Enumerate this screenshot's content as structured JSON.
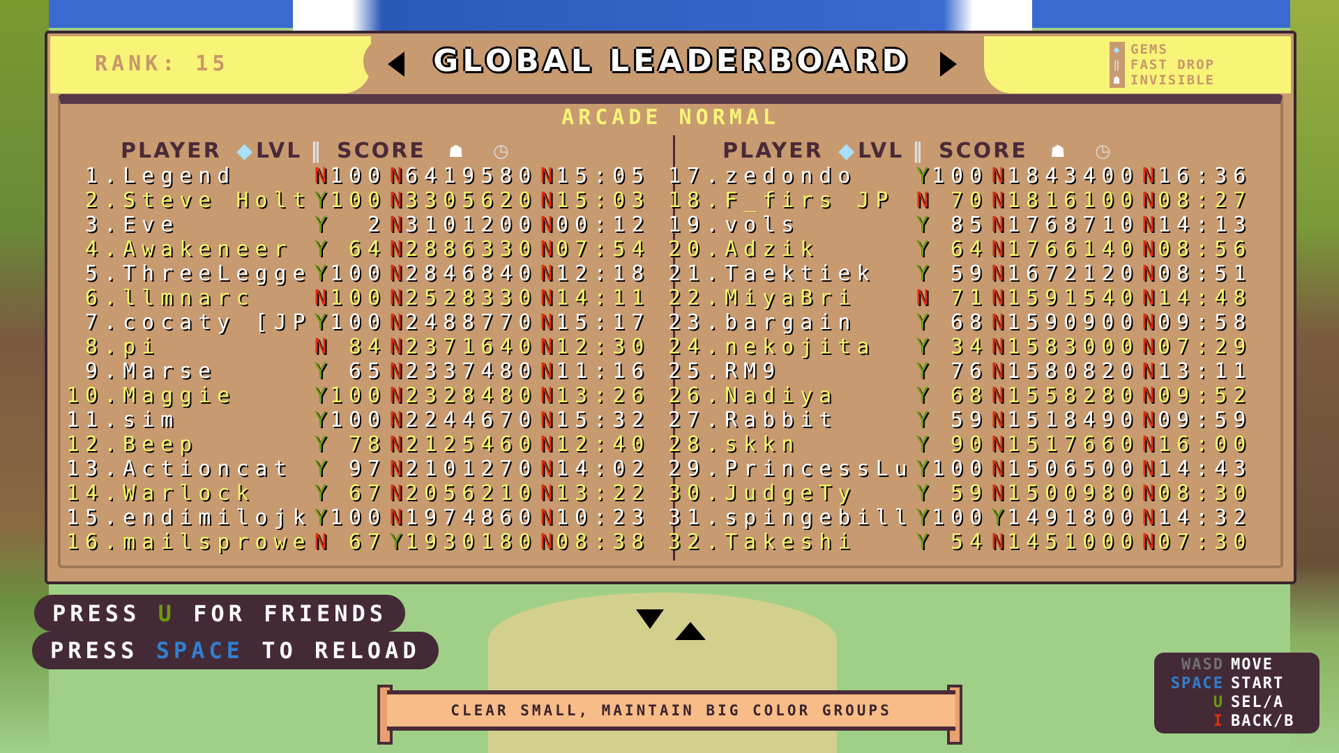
{
  "header": {
    "rank_label": "RANK: 15",
    "title": "GLOBAL LEADERBOARD",
    "mode": "ARCADE NORMAL"
  },
  "legend": [
    {
      "icon": "gem-icon",
      "label": "GEMS"
    },
    {
      "icon": "fast-drop-icon",
      "label": "FAST DROP"
    },
    {
      "icon": "ghost-icon",
      "label": "INVISIBLE"
    }
  ],
  "columns": {
    "player": "PLAYER",
    "lvl": "LVL",
    "score": "SCORE"
  },
  "colors": {
    "white_row": "#ffffff",
    "yellow_row": "#f4f46a",
    "flag_yes": "#6a9a10",
    "flag_no": "#d83010",
    "panel": "#c89a70",
    "accent_blue": "#3080d0"
  },
  "rows": [
    {
      "rank": "1.",
      "name": "Legend",
      "gems": "N",
      "lvl": "100",
      "fast_drop": "N",
      "score": "6419580",
      "invisible": "N",
      "time": "15:05"
    },
    {
      "rank": "2.",
      "name": "Steve Holt",
      "gems": "Y",
      "lvl": "100",
      "fast_drop": "N",
      "score": "3305620",
      "invisible": "N",
      "time": "15:03"
    },
    {
      "rank": "3.",
      "name": "Eve",
      "gems": "Y",
      "lvl": "2",
      "fast_drop": "N",
      "score": "3101200",
      "invisible": "N",
      "time": "00:12"
    },
    {
      "rank": "4.",
      "name": "Awakeneer",
      "gems": "Y",
      "lvl": "64",
      "fast_drop": "N",
      "score": "2886330",
      "invisible": "N",
      "time": "07:54"
    },
    {
      "rank": "5.",
      "name": "ThreeLegge",
      "gems": "Y",
      "lvl": "100",
      "fast_drop": "N",
      "score": "2846840",
      "invisible": "N",
      "time": "12:18"
    },
    {
      "rank": "6.",
      "name": "llmnarc",
      "gems": "N",
      "lvl": "100",
      "fast_drop": "N",
      "score": "2528330",
      "invisible": "N",
      "time": "14:11"
    },
    {
      "rank": "7.",
      "name": "cocaty [JP",
      "gems": "Y",
      "lvl": "100",
      "fast_drop": "N",
      "score": "2488770",
      "invisible": "N",
      "time": "15:17"
    },
    {
      "rank": "8.",
      "name": "pi",
      "gems": "N",
      "lvl": "84",
      "fast_drop": "N",
      "score": "2371640",
      "invisible": "N",
      "time": "12:30"
    },
    {
      "rank": "9.",
      "name": "Marse",
      "gems": "Y",
      "lvl": "65",
      "fast_drop": "N",
      "score": "2337480",
      "invisible": "N",
      "time": "11:16"
    },
    {
      "rank": "10.",
      "name": "Maggie",
      "gems": "Y",
      "lvl": "100",
      "fast_drop": "N",
      "score": "2328480",
      "invisible": "N",
      "time": "13:26"
    },
    {
      "rank": "11.",
      "name": "sim",
      "gems": "Y",
      "lvl": "100",
      "fast_drop": "N",
      "score": "2244670",
      "invisible": "N",
      "time": "15:32"
    },
    {
      "rank": "12.",
      "name": "Beep",
      "gems": "Y",
      "lvl": "78",
      "fast_drop": "N",
      "score": "2125460",
      "invisible": "N",
      "time": "12:40"
    },
    {
      "rank": "13.",
      "name": "Actioncat",
      "gems": "Y",
      "lvl": "97",
      "fast_drop": "N",
      "score": "2101270",
      "invisible": "N",
      "time": "14:02"
    },
    {
      "rank": "14.",
      "name": "Warlock",
      "gems": "Y",
      "lvl": "67",
      "fast_drop": "N",
      "score": "2056210",
      "invisible": "N",
      "time": "13:22"
    },
    {
      "rank": "15.",
      "name": "endimilojk",
      "gems": "Y",
      "lvl": "100",
      "fast_drop": "N",
      "score": "1974860",
      "invisible": "N",
      "time": "10:23"
    },
    {
      "rank": "16.",
      "name": "mailsprowe",
      "gems": "N",
      "lvl": "67",
      "fast_drop": "Y",
      "score": "1930180",
      "invisible": "N",
      "time": "08:38"
    },
    {
      "rank": "17.",
      "name": "zedondo",
      "gems": "Y",
      "lvl": "100",
      "fast_drop": "N",
      "score": "1843400",
      "invisible": "N",
      "time": "16:36"
    },
    {
      "rank": "18.",
      "name": "F_firs JP",
      "gems": "N",
      "lvl": "70",
      "fast_drop": "N",
      "score": "1816100",
      "invisible": "N",
      "time": "08:27"
    },
    {
      "rank": "19.",
      "name": "vols",
      "gems": "Y",
      "lvl": "85",
      "fast_drop": "N",
      "score": "1768710",
      "invisible": "N",
      "time": "14:13"
    },
    {
      "rank": "20.",
      "name": "Adzik",
      "gems": "Y",
      "lvl": "64",
      "fast_drop": "N",
      "score": "1766140",
      "invisible": "N",
      "time": "08:56"
    },
    {
      "rank": "21.",
      "name": "Taektiek",
      "gems": "Y",
      "lvl": "59",
      "fast_drop": "N",
      "score": "1672120",
      "invisible": "N",
      "time": "08:51"
    },
    {
      "rank": "22.",
      "name": "MiyaBri",
      "gems": "N",
      "lvl": "71",
      "fast_drop": "N",
      "score": "1591540",
      "invisible": "N",
      "time": "14:48"
    },
    {
      "rank": "23.",
      "name": "bargain",
      "gems": "Y",
      "lvl": "68",
      "fast_drop": "N",
      "score": "1590900",
      "invisible": "N",
      "time": "09:58"
    },
    {
      "rank": "24.",
      "name": "nekojita",
      "gems": "Y",
      "lvl": "34",
      "fast_drop": "N",
      "score": "1583000",
      "invisible": "N",
      "time": "07:29"
    },
    {
      "rank": "25.",
      "name": "RM9",
      "gems": "Y",
      "lvl": "76",
      "fast_drop": "N",
      "score": "1580820",
      "invisible": "N",
      "time": "13:11"
    },
    {
      "rank": "26.",
      "name": "Nadiya",
      "gems": "Y",
      "lvl": "68",
      "fast_drop": "N",
      "score": "1558280",
      "invisible": "N",
      "time": "09:52"
    },
    {
      "rank": "27.",
      "name": "Rabbit",
      "gems": "Y",
      "lvl": "59",
      "fast_drop": "N",
      "score": "1518490",
      "invisible": "N",
      "time": "09:59"
    },
    {
      "rank": "28.",
      "name": "skkn",
      "gems": "Y",
      "lvl": "90",
      "fast_drop": "N",
      "score": "1517660",
      "invisible": "N",
      "time": "16:00"
    },
    {
      "rank": "29.",
      "name": "PrincessLu",
      "gems": "Y",
      "lvl": "100",
      "fast_drop": "N",
      "score": "1506500",
      "invisible": "N",
      "time": "14:43"
    },
    {
      "rank": "30.",
      "name": "JudgeTy",
      "gems": "Y",
      "lvl": "59",
      "fast_drop": "N",
      "score": "1500980",
      "invisible": "N",
      "time": "08:30"
    },
    {
      "rank": "31.",
      "name": "spingebill",
      "gems": "Y",
      "lvl": "100",
      "fast_drop": "Y",
      "score": "1491800",
      "invisible": "N",
      "time": "14:32"
    },
    {
      "rank": "32.",
      "name": "Takeshi",
      "gems": "Y",
      "lvl": "54",
      "fast_drop": "N",
      "score": "1451000",
      "invisible": "N",
      "time": "07:30"
    }
  ],
  "prompts": {
    "friends": {
      "pre": "PRESS ",
      "key": "U",
      "post": " FOR FRIENDS"
    },
    "reload": {
      "pre": "PRESS ",
      "key": "SPACE",
      "post": " TO RELOAD"
    }
  },
  "tip": "CLEAR SMALL, MAINTAIN BIG COLOR GROUPS",
  "controls": [
    {
      "key": "WASD",
      "action": "MOVE",
      "color": "#707070"
    },
    {
      "key": "SPACE",
      "action": "START",
      "color": "#3080d0"
    },
    {
      "key": "U",
      "action": "SEL/A",
      "color": "#6a9a10"
    },
    {
      "key": "I",
      "action": "BACK/B",
      "color": "#d83010"
    }
  ]
}
